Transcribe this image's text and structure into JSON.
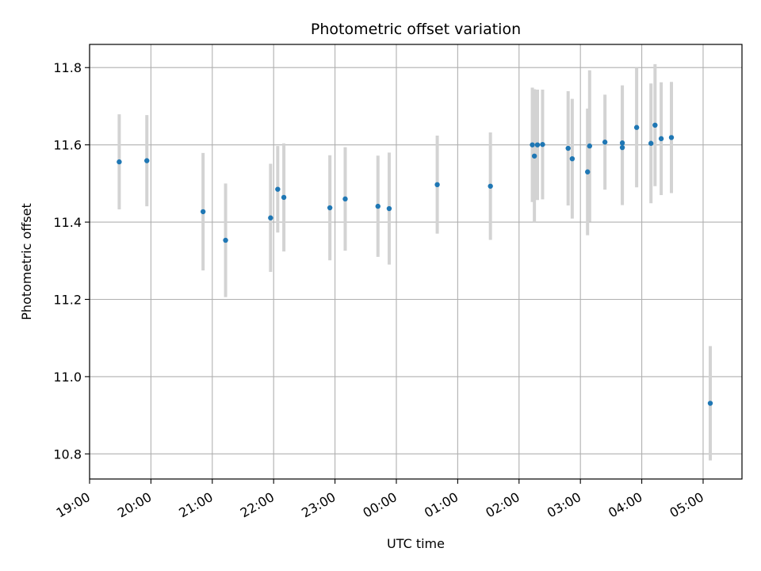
{
  "chart_data": {
    "type": "scatter",
    "title": "Photometric offset variation",
    "xlabel": "UTC time",
    "ylabel": "Photometric offset",
    "xlim": [
      "19:00",
      "05:38"
    ],
    "ylim": [
      10.735,
      11.86
    ],
    "grid": true,
    "x_ticks": [
      "19:00",
      "20:00",
      "21:00",
      "22:00",
      "23:00",
      "00:00",
      "01:00",
      "02:00",
      "03:00",
      "04:00",
      "05:00"
    ],
    "y_ticks": [
      "10.8",
      "11.0",
      "11.2",
      "11.4",
      "11.6",
      "11.8"
    ],
    "colors": {
      "points": "#1f77b4",
      "errorbars": "#d3d3d3",
      "grid": "#b0b0b0"
    },
    "points": [
      {
        "time": "19:29",
        "y": 11.556,
        "err": 0.123
      },
      {
        "time": "19:56",
        "y": 11.559,
        "err": 0.118
      },
      {
        "time": "20:51",
        "y": 11.427,
        "err": 0.152
      },
      {
        "time": "21:13",
        "y": 11.353,
        "err": 0.147
      },
      {
        "time": "21:57",
        "y": 11.411,
        "err": 0.14
      },
      {
        "time": "22:04",
        "y": 11.485,
        "err": 0.112
      },
      {
        "time": "22:10",
        "y": 11.464,
        "err": 0.14
      },
      {
        "time": "22:55",
        "y": 11.437,
        "err": 0.136
      },
      {
        "time": "23:10",
        "y": 11.46,
        "err": 0.134
      },
      {
        "time": "23:42",
        "y": 11.441,
        "err": 0.131
      },
      {
        "time": "23:53",
        "y": 11.435,
        "err": 0.145
      },
      {
        "time": "00:40",
        "y": 11.497,
        "err": 0.127
      },
      {
        "time": "01:32",
        "y": 11.493,
        "err": 0.139
      },
      {
        "time": "02:13",
        "y": 11.6,
        "err": 0.148
      },
      {
        "time": "02:15",
        "y": 11.571,
        "err": 0.173
      },
      {
        "time": "02:18",
        "y": 11.6,
        "err": 0.143
      },
      {
        "time": "02:23",
        "y": 11.601,
        "err": 0.142
      },
      {
        "time": "02:48",
        "y": 11.591,
        "err": 0.148
      },
      {
        "time": "02:52",
        "y": 11.564,
        "err": 0.155
      },
      {
        "time": "03:07",
        "y": 11.53,
        "err": 0.164
      },
      {
        "time": "03:09",
        "y": 11.597,
        "err": 0.196
      },
      {
        "time": "03:24",
        "y": 11.607,
        "err": 0.123
      },
      {
        "time": "03:41",
        "y": 11.605,
        "err": 0.149
      },
      {
        "time": "03:41",
        "y": 11.593,
        "err": 0.149
      },
      {
        "time": "03:55",
        "y": 11.645,
        "err": 0.155
      },
      {
        "time": "04:09",
        "y": 11.604,
        "err": 0.155
      },
      {
        "time": "04:13",
        "y": 11.651,
        "err": 0.158
      },
      {
        "time": "04:19",
        "y": 11.616,
        "err": 0.146
      },
      {
        "time": "04:29",
        "y": 11.619,
        "err": 0.144
      },
      {
        "time": "05:07",
        "y": 10.931,
        "err": 0.148
      }
    ]
  }
}
